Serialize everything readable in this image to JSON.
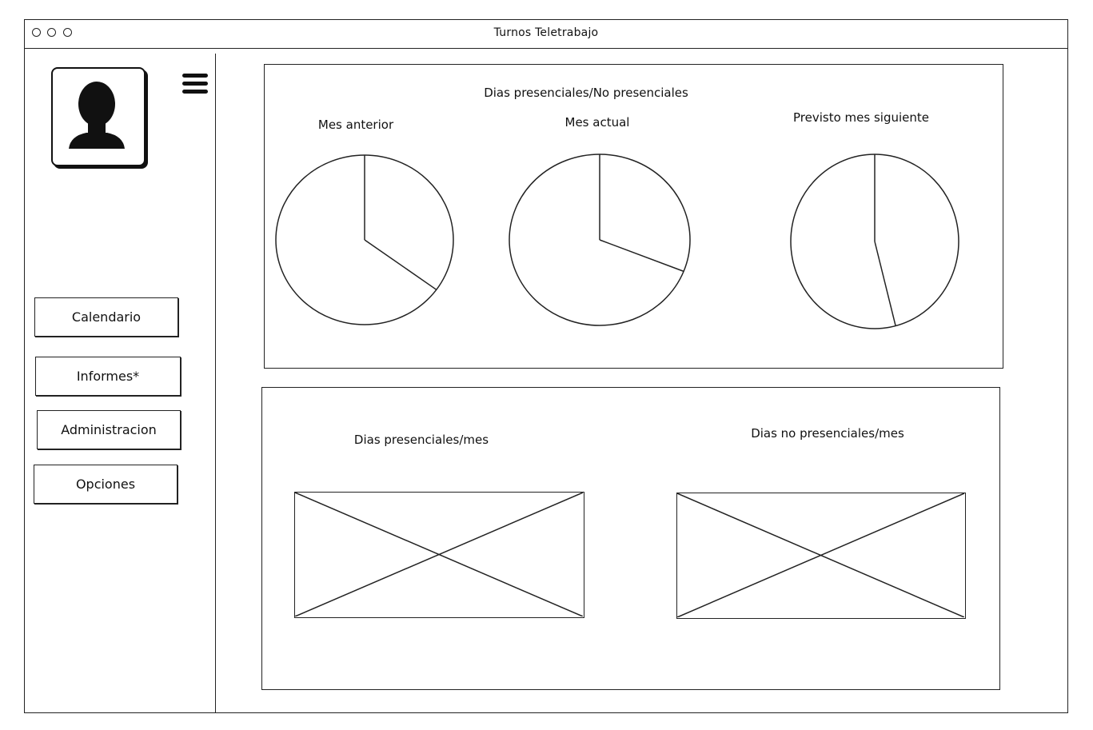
{
  "window": {
    "title": "Turnos Teletrabajo"
  },
  "sidebar": {
    "avatar_icon": "user-silhouette-icon",
    "menu_icon": "hamburger-icon",
    "items": [
      {
        "label": "Calendario"
      },
      {
        "label": "Informes*"
      },
      {
        "label": "Administracion"
      },
      {
        "label": "Opciones"
      }
    ]
  },
  "top_panel": {
    "title": "Dias presenciales/No presenciales",
    "pies": [
      {
        "label": "Mes anterior"
      },
      {
        "label": "Mes actual"
      },
      {
        "label": "Previsto mes siguiente"
      }
    ]
  },
  "chart_data": [
    {
      "type": "pie",
      "title": "Mes anterior",
      "values": [
        0.35,
        0.65
      ]
    },
    {
      "type": "pie",
      "title": "Mes actual",
      "values": [
        0.31,
        0.69
      ]
    },
    {
      "type": "pie",
      "title": "Previsto mes siguiente",
      "values": [
        0.46,
        0.54
      ]
    }
  ],
  "bottom_panel": {
    "left_title": "Dias presenciales/mes",
    "right_title": "Dias no presenciales/mes"
  }
}
